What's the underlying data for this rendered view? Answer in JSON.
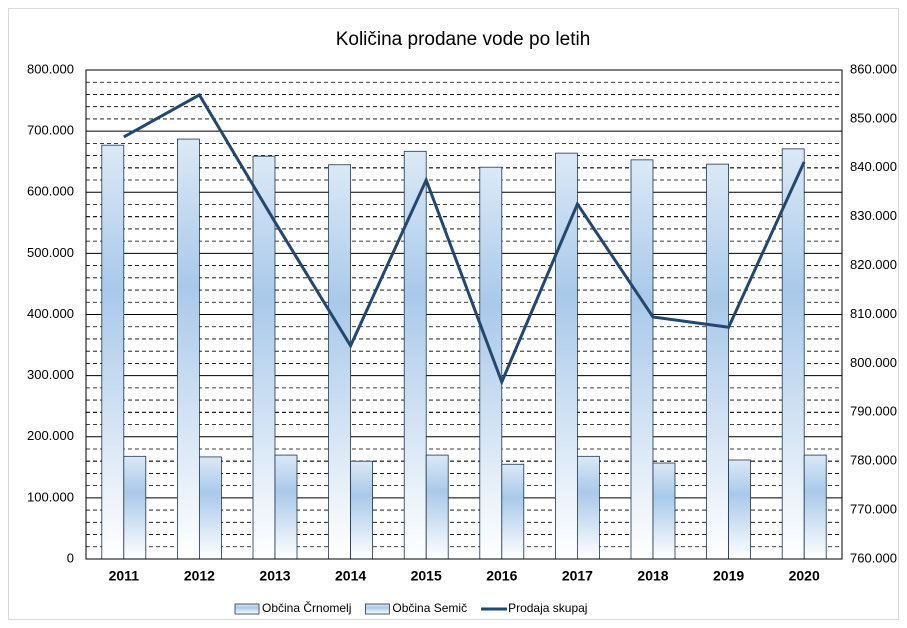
{
  "chart_data": {
    "type": "bar",
    "title": "Količina prodane vode po letih",
    "categories": [
      "2011",
      "2012",
      "2013",
      "2014",
      "2015",
      "2016",
      "2017",
      "2018",
      "2019",
      "2020"
    ],
    "series": [
      {
        "name": "Občina Črnomelj",
        "type": "bar",
        "color": "#9dc3e6",
        "values": [
          677000,
          687000,
          659000,
          645000,
          667000,
          641000,
          664000,
          653000,
          646000,
          671000
        ]
      },
      {
        "name": "Občina Semič",
        "type": "bar",
        "color": "#9dc3e6",
        "values": [
          168000,
          167000,
          170000,
          160000,
          170000,
          155000,
          168000,
          157000,
          162000,
          170000
        ]
      },
      {
        "name": "Prodaja skupaj",
        "type": "line",
        "axis": "y2",
        "color": "#23476f",
        "values": [
          846300,
          854900,
          828900,
          803600,
          837500,
          796200,
          832600,
          809500,
          807400,
          841200
        ]
      }
    ],
    "ylim": [
      0,
      800000
    ],
    "yticks": [
      0,
      {
        "value": 100000,
        "label": "100.000"
      },
      {
        "value": 200000,
        "label": "200.000"
      },
      {
        "value": 300000,
        "label": "300.000"
      },
      {
        "value": 400000,
        "label": "400.000"
      },
      {
        "value": 500000,
        "label": "500.000"
      },
      {
        "value": 600000,
        "label": "600.000"
      },
      {
        "value": 700000,
        "label": "700.000"
      },
      {
        "value": 800000,
        "label": "800.000"
      }
    ],
    "y2lim": [
      760000,
      860000
    ],
    "y2ticks": [
      {
        "value": 760000,
        "label": "760.000"
      },
      {
        "value": 770000,
        "label": "770.000"
      },
      {
        "value": 780000,
        "label": "780.000"
      },
      {
        "value": 790000,
        "label": "790.000"
      },
      {
        "value": 800000,
        "label": "800.000"
      },
      {
        "value": 810000,
        "label": "810.000"
      },
      {
        "value": 820000,
        "label": "820.000"
      },
      {
        "value": 830000,
        "label": "830.000"
      },
      {
        "value": 840000,
        "label": "840.000"
      },
      {
        "value": 850000,
        "label": "850.000"
      },
      {
        "value": 860000,
        "label": "860.000"
      }
    ],
    "grid": true,
    "legend": "bottom"
  }
}
